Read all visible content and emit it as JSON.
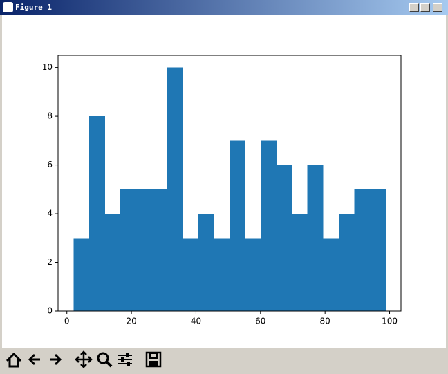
{
  "window": {
    "title": "Figure 1"
  },
  "chart_data": {
    "type": "histogram",
    "bins": [
      2.1,
      6.93,
      11.76,
      16.59,
      21.42,
      26.25,
      31.08,
      35.91,
      40.74,
      45.57,
      50.4,
      55.23,
      60.06,
      64.89,
      69.72,
      74.55,
      79.38,
      84.21,
      89.04,
      93.87,
      98.7
    ],
    "values": [
      3,
      8,
      4,
      5,
      5,
      5,
      10,
      3,
      4,
      3,
      7,
      3,
      7,
      6,
      4,
      6,
      3,
      4,
      5,
      5
    ],
    "color": "#1f77b4",
    "xlim": [
      -2.73,
      103.53
    ],
    "xticks": [
      0,
      20,
      40,
      60,
      80,
      100
    ],
    "ylim": [
      0,
      10.5
    ],
    "yticks": [
      0,
      2,
      4,
      6,
      8,
      10
    ],
    "grid": false
  }
}
